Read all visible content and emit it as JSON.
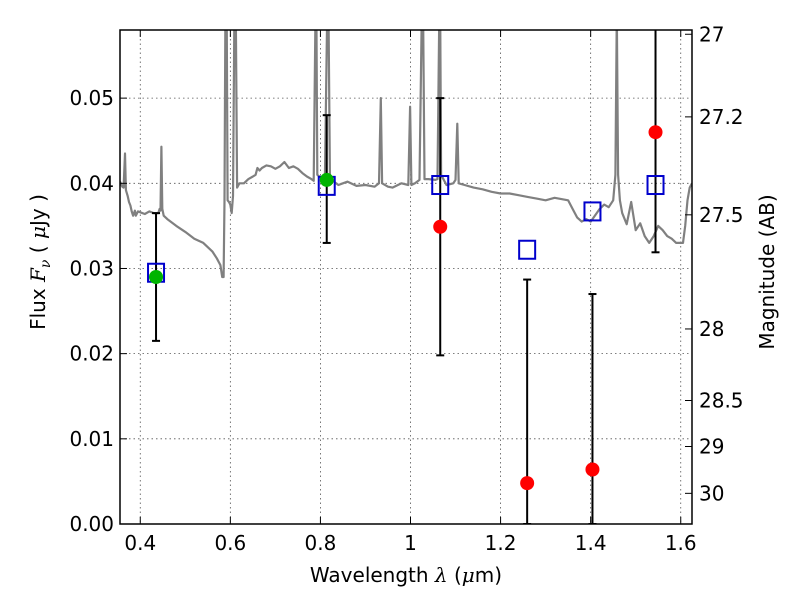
{
  "chart_data": {
    "type": "scatter",
    "xlabel_prefix": "Wavelength ",
    "xlabel_symbol": "λ",
    "xlabel_unit_open": " (",
    "xlabel_unit_mu": "μ",
    "xlabel_unit_rest": "m)",
    "ylabel_prefix": "Flux ",
    "ylabel_symbol": "F",
    "ylabel_subscript": "ν",
    "ylabel_unit_open": " ( ",
    "ylabel_unit_mu": "μ",
    "ylabel_unit_rest": "Jy )",
    "y2label": "Magnitude (AB)",
    "xlim": [
      0.355,
      1.625
    ],
    "ylim": [
      0.0,
      0.058
    ],
    "grid": true,
    "xticks": [
      0.4,
      0.6,
      0.8,
      1.0,
      1.2,
      1.4,
      1.6
    ],
    "xtick_labels": [
      "0.4",
      "0.6",
      "0.8",
      "1",
      "1.2",
      "1.4",
      "1.6"
    ],
    "yticks": [
      0.0,
      0.01,
      0.02,
      0.03,
      0.04,
      0.05
    ],
    "ytick_labels": [
      "0.00",
      "0.01",
      "0.02",
      "0.03",
      "0.04",
      "0.05"
    ],
    "y2ticks": [
      {
        "label": "27",
        "flux": 0.0575
      },
      {
        "label": "27.2",
        "flux": 0.0478
      },
      {
        "label": "27.5",
        "flux": 0.0363
      },
      {
        "label": "28",
        "flux": 0.0229
      },
      {
        "label": "28.5",
        "flux": 0.0145
      },
      {
        "label": "29",
        "flux": 0.0091
      },
      {
        "label": "30",
        "flux": 0.0036
      }
    ],
    "colors": {
      "model": "#808080",
      "observed_optical": "#00b400",
      "observed_nir": "#ff0000",
      "model_photometry": "#0000cc",
      "errorbar": "#000000",
      "grid": "#555555"
    },
    "series": [
      {
        "role": "observed",
        "marker": "circle",
        "points": [
          {
            "x": 0.435,
            "y": 0.029,
            "yerr_low": 0.0215,
            "yerr_high": 0.0365,
            "color": "observed_optical"
          },
          {
            "x": 0.814,
            "y": 0.0404,
            "yerr_low": 0.033,
            "yerr_high": 0.048,
            "color": "observed_optical"
          },
          {
            "x": 1.066,
            "y": 0.0349,
            "yerr_low": 0.0198,
            "yerr_high": 0.05,
            "color": "observed_nir"
          },
          {
            "x": 1.259,
            "y": 0.0048,
            "yerr_low": 0.0,
            "yerr_high": 0.0287,
            "color": "observed_nir"
          },
          {
            "x": 1.404,
            "y": 0.0064,
            "yerr_low": 0.0,
            "yerr_high": 0.027,
            "color": "observed_nir"
          },
          {
            "x": 1.544,
            "y": 0.046,
            "yerr_low": 0.0319,
            "yerr_high": 0.06,
            "color": "observed_nir"
          }
        ]
      },
      {
        "role": "model photometry",
        "marker": "open-square",
        "points": [
          {
            "x": 0.435,
            "y": 0.0295
          },
          {
            "x": 0.814,
            "y": 0.0397
          },
          {
            "x": 1.066,
            "y": 0.0398
          },
          {
            "x": 1.259,
            "y": 0.0322
          },
          {
            "x": 1.404,
            "y": 0.0367
          },
          {
            "x": 1.544,
            "y": 0.0398
          }
        ]
      },
      {
        "role": "model spectrum",
        "marker": "line",
        "points": [
          [
            0.355,
            0.0402
          ],
          [
            0.36,
            0.0396
          ],
          [
            0.363,
            0.0395
          ],
          [
            0.366,
            0.0435
          ],
          [
            0.368,
            0.0392
          ],
          [
            0.372,
            0.0385
          ],
          [
            0.375,
            0.0378
          ],
          [
            0.378,
            0.0374
          ],
          [
            0.381,
            0.0367
          ],
          [
            0.384,
            0.0362
          ],
          [
            0.388,
            0.0368
          ],
          [
            0.39,
            0.0362
          ],
          [
            0.395,
            0.0367
          ],
          [
            0.4,
            0.0366
          ],
          [
            0.41,
            0.0364
          ],
          [
            0.42,
            0.0367
          ],
          [
            0.43,
            0.0365
          ],
          [
            0.44,
            0.0365
          ],
          [
            0.443,
            0.037
          ],
          [
            0.445,
            0.0368
          ],
          [
            0.447,
            0.0443
          ],
          [
            0.449,
            0.037
          ],
          [
            0.452,
            0.0362
          ],
          [
            0.46,
            0.0358
          ],
          [
            0.48,
            0.035
          ],
          [
            0.5,
            0.0343
          ],
          [
            0.52,
            0.0335
          ],
          [
            0.54,
            0.033
          ],
          [
            0.55,
            0.0325
          ],
          [
            0.56,
            0.032
          ],
          [
            0.57,
            0.0312
          ],
          [
            0.578,
            0.0304
          ],
          [
            0.582,
            0.029
          ],
          [
            0.585,
            0.029
          ],
          [
            0.587,
            0.038
          ],
          [
            0.589,
            0.06
          ],
          [
            0.592,
            0.06
          ],
          [
            0.594,
            0.038
          ],
          [
            0.597,
            0.0378
          ],
          [
            0.6,
            0.0375
          ],
          [
            0.603,
            0.0365
          ],
          [
            0.606,
            0.0385
          ],
          [
            0.609,
            0.06
          ],
          [
            0.612,
            0.06
          ],
          [
            0.615,
            0.0395
          ],
          [
            0.62,
            0.04
          ],
          [
            0.63,
            0.04
          ],
          [
            0.64,
            0.0405
          ],
          [
            0.65,
            0.0408
          ],
          [
            0.656,
            0.041
          ],
          [
            0.66,
            0.0418
          ],
          [
            0.665,
            0.0415
          ],
          [
            0.67,
            0.0418
          ],
          [
            0.68,
            0.0421
          ],
          [
            0.69,
            0.042
          ],
          [
            0.7,
            0.0417
          ],
          [
            0.71,
            0.042
          ],
          [
            0.72,
            0.0425
          ],
          [
            0.73,
            0.0418
          ],
          [
            0.74,
            0.042
          ],
          [
            0.75,
            0.0417
          ],
          [
            0.76,
            0.0412
          ],
          [
            0.77,
            0.0408
          ],
          [
            0.78,
            0.0405
          ],
          [
            0.785,
            0.0403
          ],
          [
            0.789,
            0.06
          ],
          [
            0.791,
            0.06
          ],
          [
            0.793,
            0.041
          ],
          [
            0.8,
            0.0407
          ],
          [
            0.81,
            0.0405
          ],
          [
            0.815,
            0.06
          ],
          [
            0.818,
            0.06
          ],
          [
            0.821,
            0.041
          ],
          [
            0.83,
            0.0402
          ],
          [
            0.84,
            0.0398
          ],
          [
            0.85,
            0.04
          ],
          [
            0.86,
            0.0402
          ],
          [
            0.88,
            0.0397
          ],
          [
            0.9,
            0.0398
          ],
          [
            0.92,
            0.0396
          ],
          [
            0.93,
            0.04
          ],
          [
            0.934,
            0.05
          ],
          [
            0.937,
            0.04
          ],
          [
            0.95,
            0.0396
          ],
          [
            0.96,
            0.0395
          ],
          [
            0.98,
            0.04
          ],
          [
            0.995,
            0.0398
          ],
          [
            0.999,
            0.049
          ],
          [
            1.002,
            0.0398
          ],
          [
            1.01,
            0.04
          ],
          [
            1.02,
            0.0404
          ],
          [
            1.025,
            0.06
          ],
          [
            1.028,
            0.06
          ],
          [
            1.031,
            0.0405
          ],
          [
            1.04,
            0.0405
          ],
          [
            1.055,
            0.0404
          ],
          [
            1.06,
            0.0405
          ],
          [
            1.064,
            0.06
          ],
          [
            1.066,
            0.06
          ],
          [
            1.068,
            0.041
          ],
          [
            1.08,
            0.0398
          ],
          [
            1.095,
            0.04
          ],
          [
            1.1,
            0.0404
          ],
          [
            1.104,
            0.047
          ],
          [
            1.107,
            0.04
          ],
          [
            1.12,
            0.0398
          ],
          [
            1.14,
            0.0395
          ],
          [
            1.16,
            0.0393
          ],
          [
            1.18,
            0.039
          ],
          [
            1.2,
            0.0388
          ],
          [
            1.22,
            0.0388
          ],
          [
            1.24,
            0.0386
          ],
          [
            1.26,
            0.0384
          ],
          [
            1.28,
            0.0382
          ],
          [
            1.3,
            0.038
          ],
          [
            1.32,
            0.0383
          ],
          [
            1.35,
            0.038
          ],
          [
            1.36,
            0.037
          ],
          [
            1.37,
            0.036
          ],
          [
            1.38,
            0.0355
          ],
          [
            1.39,
            0.0358
          ],
          [
            1.4,
            0.0355
          ],
          [
            1.42,
            0.037
          ],
          [
            1.43,
            0.0375
          ],
          [
            1.44,
            0.0372
          ],
          [
            1.45,
            0.038
          ],
          [
            1.455,
            0.041
          ],
          [
            1.458,
            0.06
          ],
          [
            1.461,
            0.041
          ],
          [
            1.465,
            0.038
          ],
          [
            1.47,
            0.0365
          ],
          [
            1.48,
            0.0352
          ],
          [
            1.49,
            0.0378
          ],
          [
            1.5,
            0.0345
          ],
          [
            1.51,
            0.0353
          ],
          [
            1.52,
            0.0338
          ],
          [
            1.53,
            0.033
          ],
          [
            1.54,
            0.0338
          ],
          [
            1.55,
            0.035
          ],
          [
            1.56,
            0.0345
          ],
          [
            1.57,
            0.0338
          ],
          [
            1.58,
            0.0335
          ],
          [
            1.59,
            0.033
          ],
          [
            1.6,
            0.033
          ],
          [
            1.605,
            0.033
          ],
          [
            1.61,
            0.035
          ],
          [
            1.615,
            0.038
          ],
          [
            1.62,
            0.0395
          ],
          [
            1.625,
            0.04
          ]
        ]
      }
    ]
  }
}
